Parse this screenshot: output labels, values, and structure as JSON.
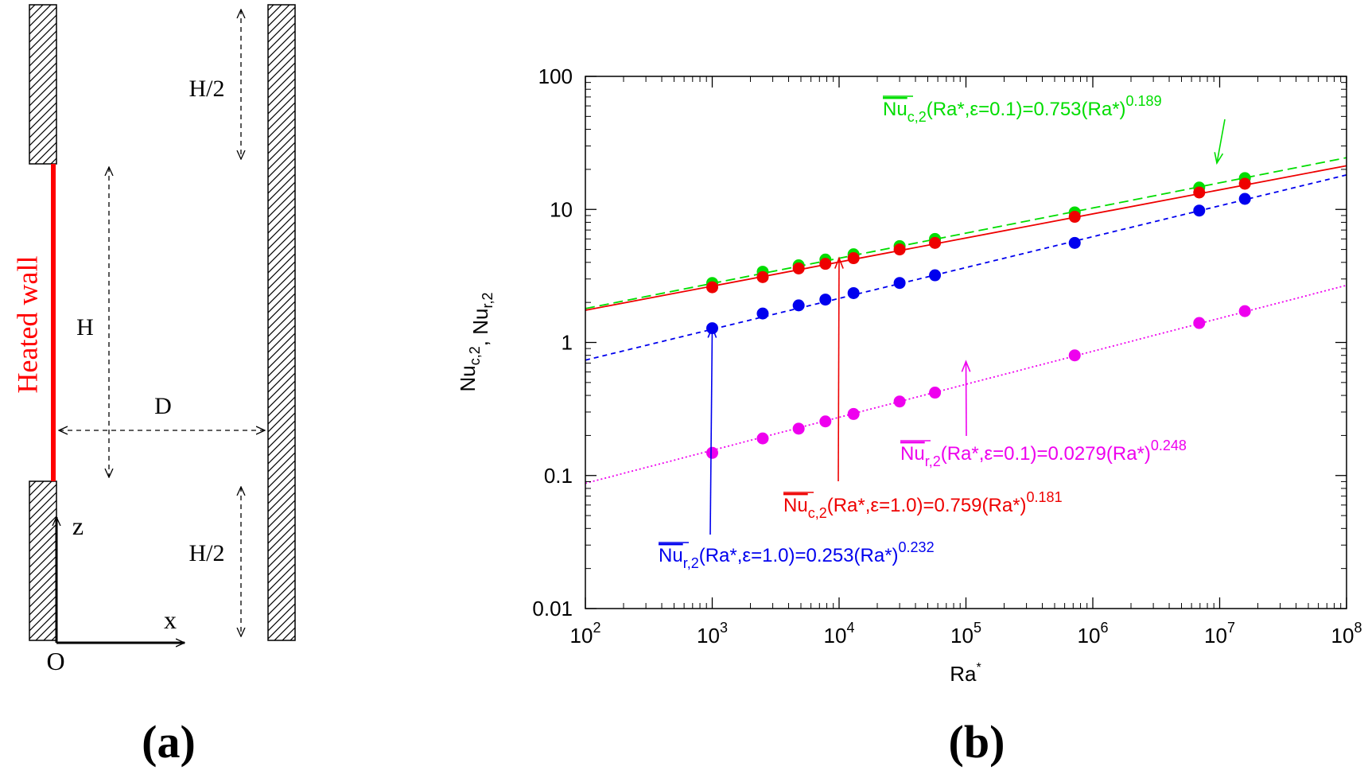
{
  "panel_a": {
    "heated_wall_label": "Heated wall",
    "label_H": "H",
    "label_D": "D",
    "label_H_half_top": "H/2",
    "label_H_half_bottom": "H/2",
    "axis_z": "z",
    "axis_x": "x",
    "origin": "O",
    "panel_label": "(a)",
    "colors": {
      "heated_wall": "#ff0000",
      "walls": "#000000",
      "dimension": "#000000"
    }
  },
  "panel_b": {
    "panel_label": "(b)"
  },
  "chart_data": {
    "type": "scatter",
    "xlabel": "Ra*",
    "ylabel": "Nu_c,2, Nu_r,2",
    "xscale": "log",
    "yscale": "log",
    "xlim": [
      100,
      100000000
    ],
    "ylim": [
      0.01,
      100
    ],
    "grid": false,
    "x_ticks": [
      {
        "base": "10",
        "exp": "2"
      },
      {
        "base": "10",
        "exp": "3"
      },
      {
        "base": "10",
        "exp": "4"
      },
      {
        "base": "10",
        "exp": "5"
      },
      {
        "base": "10",
        "exp": "6"
      },
      {
        "base": "10",
        "exp": "7"
      },
      {
        "base": "10",
        "exp": "8"
      }
    ],
    "y_ticks": [
      "0.01",
      "0.1",
      "1",
      "10",
      "100"
    ],
    "y_tick_values": [
      0.01,
      0.1,
      1,
      10,
      100
    ],
    "series": [
      {
        "color": "#00dd00",
        "line_style": "dashed",
        "fit": {
          "coef": 0.753,
          "exp": 0.189
        },
        "x": [
          1000,
          2500,
          4800,
          7800,
          13000,
          30000,
          57000,
          720000,
          6900000,
          15800000
        ],
        "y": [
          2.8,
          3.4,
          3.8,
          4.2,
          4.6,
          5.3,
          6.0,
          9.5,
          14.6,
          17.2
        ]
      },
      {
        "color": "#ee0000",
        "line_style": "solid",
        "fit": {
          "coef": 0.759,
          "exp": 0.181
        },
        "x": [
          1000,
          2500,
          4800,
          7800,
          13000,
          30000,
          57000,
          720000,
          6900000,
          15800000
        ],
        "y": [
          2.6,
          3.1,
          3.6,
          3.9,
          4.3,
          5.0,
          5.6,
          8.8,
          13.4,
          15.6
        ]
      },
      {
        "color": "#0000ee",
        "line_style": "short-dashed",
        "fit": {
          "coef": 0.253,
          "exp": 0.232
        },
        "x": [
          1000,
          2500,
          4800,
          7800,
          13000,
          30000,
          57000,
          720000,
          6900000,
          15800000
        ],
        "y": [
          1.28,
          1.65,
          1.9,
          2.1,
          2.35,
          2.8,
          3.2,
          5.6,
          9.8,
          12.0
        ]
      },
      {
        "color": "#ee00ee",
        "line_style": "dotted",
        "fit": {
          "coef": 0.0279,
          "exp": 0.248
        },
        "x": [
          1000,
          2500,
          4800,
          7800,
          13000,
          30000,
          57000,
          720000,
          6900000,
          15800000
        ],
        "y": [
          0.148,
          0.19,
          0.225,
          0.255,
          0.29,
          0.36,
          0.42,
          0.8,
          1.4,
          1.72
        ]
      }
    ],
    "annotations": [
      {
        "color": "#00dd00",
        "overbar": "Nu",
        "sub": "c,2",
        "args": "(Ra*,ε=0.1)=0.753(Ra*)",
        "sup": "0.189",
        "arrow_to": [
          10000000,
          15.5
        ]
      },
      {
        "color": "#ee0000",
        "overbar": "Nu",
        "sub": "c,2",
        "args": "(Ra*,ε=1.0)=0.759(Ra*)",
        "sup": "0.181",
        "arrow_to": [
          10000,
          4.3
        ]
      },
      {
        "color": "#0000ee",
        "overbar": "Nu",
        "sub": "r,2",
        "args": "(Ra*,ε=1.0)=0.253(Ra*)",
        "sup": "0.232",
        "arrow_to": [
          1000,
          1.3
        ]
      },
      {
        "color": "#ee00ee",
        "overbar": "Nu",
        "sub": "r,2",
        "args": "(Ra*,ε=0.1)=0.0279(Ra*)",
        "sup": "0.248",
        "arrow_to": [
          100000,
          0.72
        ]
      }
    ]
  }
}
